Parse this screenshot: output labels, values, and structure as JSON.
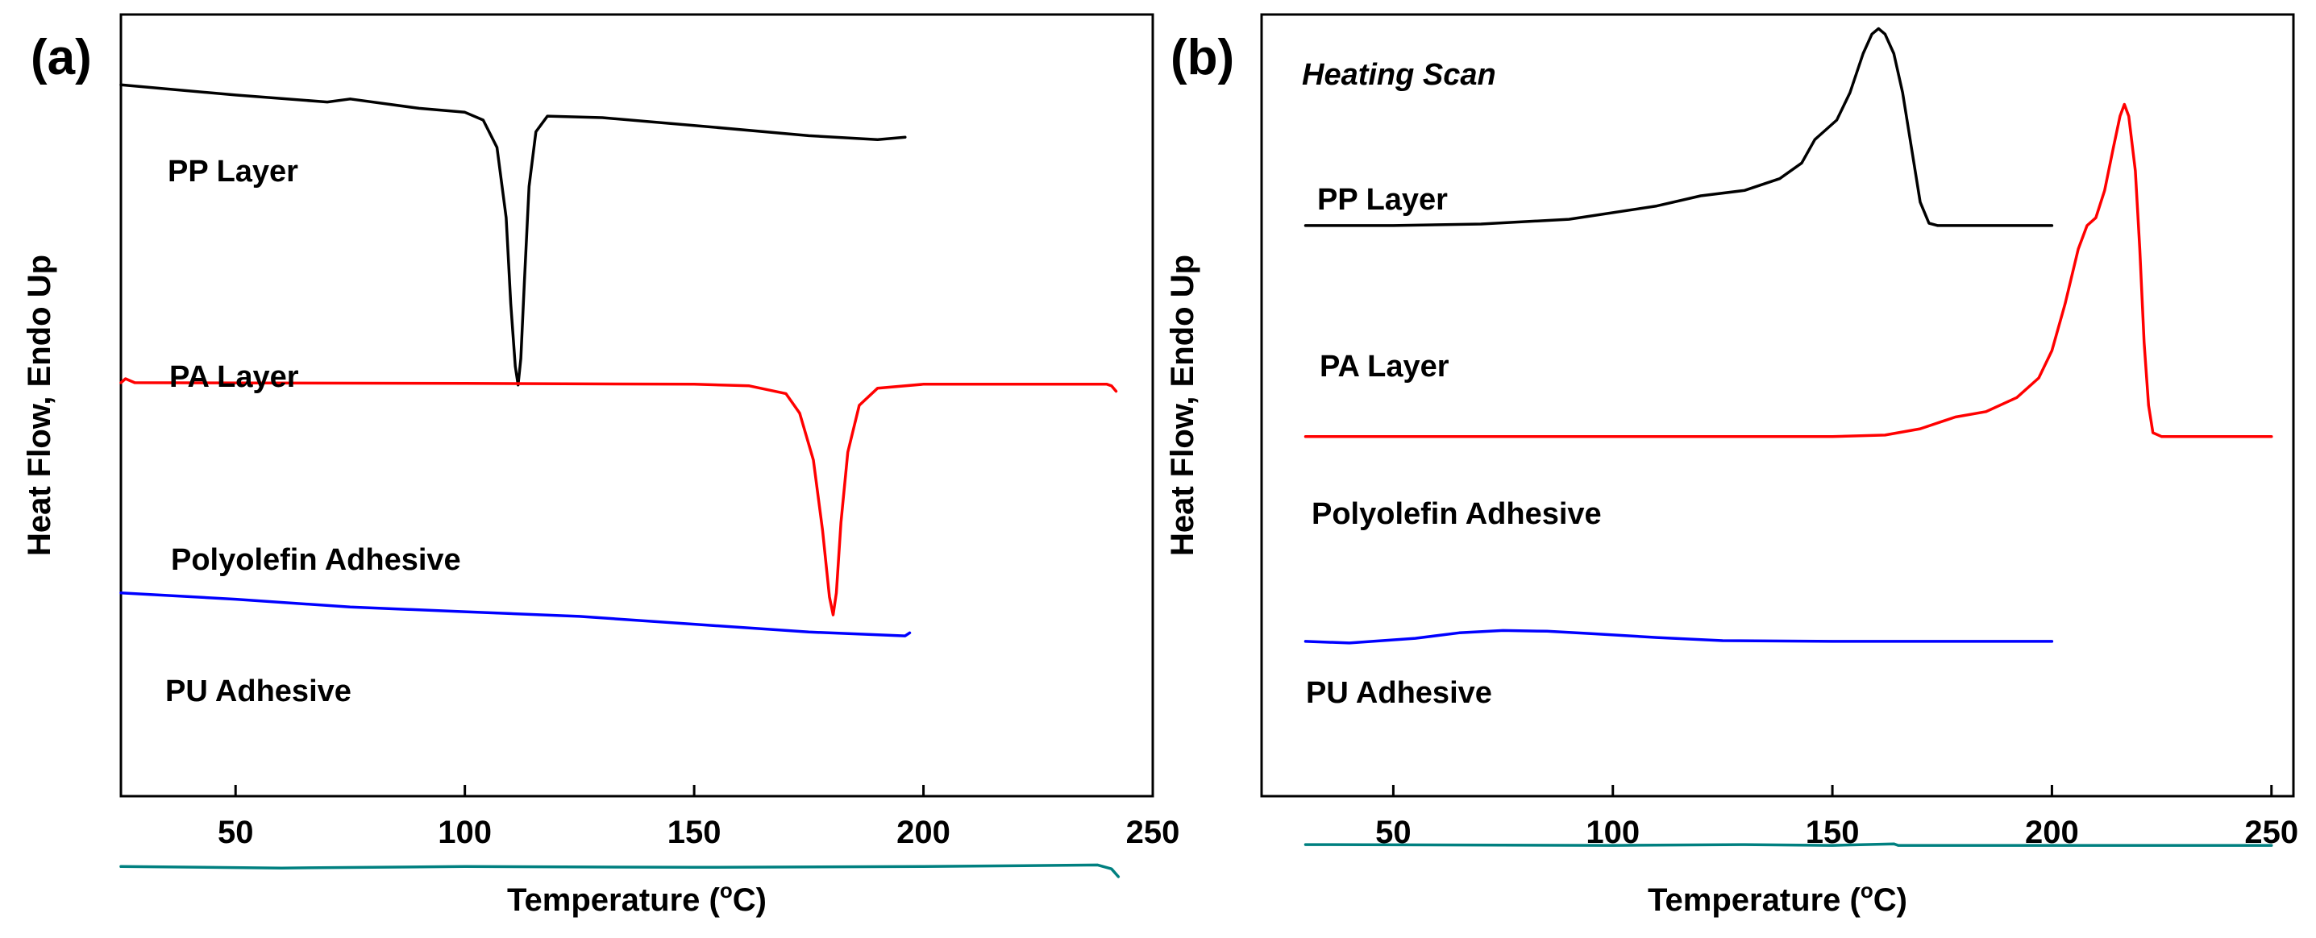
{
  "chart_data": [
    {
      "type": "line",
      "panel_label": "(a)",
      "xlabel": "Temperature (",
      "xlabel_sup": "o",
      "xlabel_tail": "C)",
      "ylabel": "Heat Flow, Endo Up",
      "xlim": [
        25,
        250
      ],
      "ylim": [
        0,
        100
      ],
      "grid": false,
      "xticks": [
        50,
        100,
        150,
        200,
        250
      ],
      "xtick_labels": [
        "50",
        "100",
        "150",
        "200",
        "250"
      ],
      "series": [
        {
          "name": "PP Layer",
          "color": "#000000",
          "points": [
            [
              25,
              91
            ],
            [
              50,
              89.7
            ],
            [
              70,
              88.8
            ],
            [
              75,
              89.2
            ],
            [
              90,
              88
            ],
            [
              100,
              87.5
            ],
            [
              104,
              86.5
            ],
            [
              107,
              83
            ],
            [
              109,
              74
            ],
            [
              110,
              63
            ],
            [
              111,
              55
            ],
            [
              111.6,
              52.6
            ],
            [
              112.2,
              56
            ],
            [
              113,
              66
            ],
            [
              114,
              78
            ],
            [
              115.5,
              85
            ],
            [
              118,
              87
            ],
            [
              130,
              86.8
            ],
            [
              150,
              85.8
            ],
            [
              175,
              84.5
            ],
            [
              190,
              84
            ],
            [
              196,
              84.3
            ]
          ]
        },
        {
          "name": "PA Layer",
          "color": "#ff0000",
          "points": [
            [
              25,
              52.9
            ],
            [
              26,
              53.4
            ],
            [
              28,
              52.9
            ],
            [
              100,
              52.8
            ],
            [
              150,
              52.7
            ],
            [
              162,
              52.5
            ],
            [
              170,
              51.5
            ],
            [
              173,
              49
            ],
            [
              176,
              43
            ],
            [
              178,
              34
            ],
            [
              179.5,
              25.5
            ],
            [
              180.3,
              23.2
            ],
            [
              181,
              26
            ],
            [
              182,
              35
            ],
            [
              183.5,
              44
            ],
            [
              186,
              50
            ],
            [
              190,
              52.2
            ],
            [
              200,
              52.7
            ],
            [
              240,
              52.7
            ],
            [
              241,
              52.5
            ],
            [
              242,
              51.8
            ]
          ]
        },
        {
          "name": "Polyolefin Adhesive",
          "color": "#0000ff",
          "points": [
            [
              25,
              26
            ],
            [
              50,
              25.2
            ],
            [
              75,
              24.2
            ],
            [
              100,
              23.6
            ],
            [
              125,
              23
            ],
            [
              150,
              22
            ],
            [
              175,
              21
            ],
            [
              196,
              20.5
            ],
            [
              197,
              20.9
            ]
          ]
        },
        {
          "name": "PU Adhesive",
          "color": "#008080",
          "points": [
            [
              25,
              -9
            ],
            [
              60,
              -9.2
            ],
            [
              100,
              -9
            ],
            [
              150,
              -9.1
            ],
            [
              200,
              -9
            ],
            [
              238,
              -8.8
            ],
            [
              241,
              -9.3
            ],
            [
              242.5,
              -10.3
            ]
          ]
        }
      ]
    },
    {
      "type": "line",
      "panel_label": "(b)",
      "annotation": "Heating Scan",
      "xlabel": "Temperature (",
      "xlabel_sup": "o",
      "xlabel_tail": "C)",
      "ylabel": "Heat Flow, Endo Up",
      "xlim": [
        20,
        255
      ],
      "ylim": [
        0,
        100
      ],
      "grid": false,
      "xticks": [
        50,
        100,
        150,
        200,
        250
      ],
      "xtick_labels": [
        "50",
        "100",
        "150",
        "200",
        "250"
      ],
      "series": [
        {
          "name": "PP Layer",
          "color": "#000000",
          "points": [
            [
              30,
              73
            ],
            [
              50,
              73
            ],
            [
              70,
              73.2
            ],
            [
              90,
              73.8
            ],
            [
              110,
              75.5
            ],
            [
              120,
              76.8
            ],
            [
              130,
              77.5
            ],
            [
              138,
              79
            ],
            [
              143,
              81
            ],
            [
              146,
              84
            ],
            [
              148,
              85
            ],
            [
              151,
              86.5
            ],
            [
              154,
              90
            ],
            [
              157,
              95
            ],
            [
              159,
              97.5
            ],
            [
              160.5,
              98.2
            ],
            [
              162,
              97.5
            ],
            [
              164,
              95
            ],
            [
              166,
              90
            ],
            [
              168,
              83
            ],
            [
              170,
              76
            ],
            [
              172,
              73.3
            ],
            [
              174,
              73
            ],
            [
              200,
              73
            ]
          ]
        },
        {
          "name": "PA Layer",
          "color": "#ff0000",
          "points": [
            [
              30,
              46
            ],
            [
              100,
              46
            ],
            [
              150,
              46
            ],
            [
              162,
              46.2
            ],
            [
              170,
              47
            ],
            [
              178,
              48.5
            ],
            [
              185,
              49.2
            ],
            [
              192,
              51
            ],
            [
              197,
              53.5
            ],
            [
              200,
              57
            ],
            [
              203,
              63
            ],
            [
              206,
              70
            ],
            [
              208,
              73
            ],
            [
              210,
              74
            ],
            [
              212,
              77.5
            ],
            [
              214,
              83
            ],
            [
              215.5,
              87
            ],
            [
              216.5,
              88.5
            ],
            [
              217.5,
              87
            ],
            [
              219,
              80
            ],
            [
              220,
              70
            ],
            [
              221,
              58
            ],
            [
              222,
              50
            ],
            [
              223,
              46.5
            ],
            [
              225,
              46
            ],
            [
              250,
              46
            ]
          ]
        },
        {
          "name": "Polyolefin Adhesive",
          "color": "#0000ff",
          "points": [
            [
              30,
              19.8
            ],
            [
              40,
              19.6
            ],
            [
              55,
              20.2
            ],
            [
              65,
              20.9
            ],
            [
              75,
              21.2
            ],
            [
              85,
              21.1
            ],
            [
              95,
              20.8
            ],
            [
              110,
              20.3
            ],
            [
              125,
              19.9
            ],
            [
              150,
              19.8
            ],
            [
              200,
              19.8
            ]
          ]
        },
        {
          "name": "PU Adhesive",
          "color": "#008080",
          "points": [
            [
              30,
              -6.2
            ],
            [
              100,
              -6.3
            ],
            [
              130,
              -6.2
            ],
            [
              150,
              -6.3
            ],
            [
              164,
              -6.1
            ],
            [
              165,
              -6.3
            ],
            [
              200,
              -6.3
            ],
            [
              250,
              -6.3
            ]
          ]
        }
      ]
    }
  ]
}
